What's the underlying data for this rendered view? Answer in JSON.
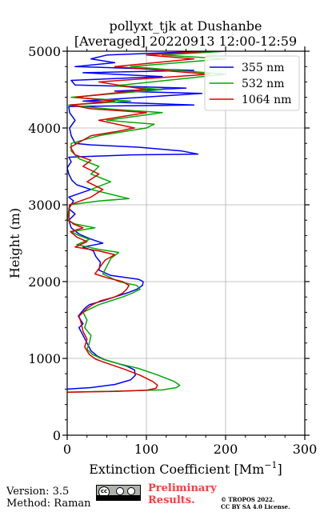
{
  "chart_data": {
    "type": "line",
    "title": "pollyxt_tjk at Dushanbe",
    "subtitle": "[Averaged] 20220913 12:00-12:59",
    "xlabel": "Extinction Coefficient [Mm",
    "xlabel_sup": "−1",
    "xlabel_end": "]",
    "ylabel": "Height (m)",
    "xlim": [
      0,
      300
    ],
    "ylim": [
      0,
      5000
    ],
    "xticks": [
      0,
      100,
      200,
      300
    ],
    "yticks": [
      0,
      1000,
      2000,
      3000,
      4000,
      5000
    ],
    "grid": true,
    "legend_position": "top-right",
    "series": [
      {
        "name": "355 nm",
        "color": "#0000ff",
        "points": [
          [
            0,
            600
          ],
          [
            30,
            620
          ],
          [
            60,
            660
          ],
          [
            80,
            720
          ],
          [
            86,
            780
          ],
          [
            85,
            850
          ],
          [
            75,
            900
          ],
          [
            62,
            940
          ],
          [
            48,
            980
          ],
          [
            38,
            1030
          ],
          [
            30,
            1100
          ],
          [
            25,
            1200
          ],
          [
            20,
            1300
          ],
          [
            15,
            1400
          ],
          [
            20,
            1450
          ],
          [
            14,
            1550
          ],
          [
            18,
            1600
          ],
          [
            22,
            1650
          ],
          [
            28,
            1700
          ],
          [
            45,
            1750
          ],
          [
            60,
            1800
          ],
          [
            75,
            1850
          ],
          [
            88,
            1900
          ],
          [
            95,
            1950
          ],
          [
            96,
            2000
          ],
          [
            90,
            2030
          ],
          [
            55,
            2080
          ],
          [
            40,
            2150
          ],
          [
            42,
            2250
          ],
          [
            36,
            2330
          ],
          [
            33,
            2400
          ],
          [
            20,
            2450
          ],
          [
            45,
            2500
          ],
          [
            28,
            2560
          ],
          [
            15,
            2620
          ],
          [
            5,
            2700
          ],
          [
            2,
            2800
          ],
          [
            10,
            2880
          ],
          [
            2,
            2950
          ],
          [
            8,
            3050
          ],
          [
            2,
            3100
          ],
          [
            30,
            3200
          ],
          [
            12,
            3260
          ],
          [
            6,
            3320
          ],
          [
            2,
            3400
          ],
          [
            0,
            3480
          ],
          [
            5,
            3560
          ],
          [
            2,
            3620
          ],
          [
            80,
            3650
          ],
          [
            165,
            3660
          ],
          [
            145,
            3700
          ],
          [
            90,
            3750
          ],
          [
            30,
            3780
          ],
          [
            10,
            3800
          ],
          [
            5,
            3900
          ],
          [
            3,
            4000
          ],
          [
            10,
            4100
          ],
          [
            3,
            4200
          ],
          [
            2,
            4280
          ],
          [
            160,
            4300
          ],
          [
            20,
            4350
          ],
          [
            170,
            4450
          ],
          [
            60,
            4480
          ],
          [
            150,
            4520
          ],
          [
            10,
            4560
          ],
          [
            5,
            4620
          ],
          [
            120,
            4670
          ],
          [
            20,
            4720
          ],
          [
            160,
            4750
          ],
          [
            10,
            4800
          ],
          [
            60,
            4850
          ],
          [
            30,
            4900
          ],
          [
            50,
            4950
          ],
          [
            150,
            4990
          ],
          [
            170,
            5000
          ]
        ]
      },
      {
        "name": "532 nm",
        "color": "#00aa00",
        "points": [
          [
            0,
            560
          ],
          [
            70,
            575
          ],
          [
            120,
            590
          ],
          [
            138,
            620
          ],
          [
            142,
            650
          ],
          [
            135,
            700
          ],
          [
            115,
            780
          ],
          [
            90,
            870
          ],
          [
            65,
            930
          ],
          [
            45,
            990
          ],
          [
            32,
            1050
          ],
          [
            25,
            1120
          ],
          [
            28,
            1200
          ],
          [
            30,
            1300
          ],
          [
            22,
            1400
          ],
          [
            25,
            1500
          ],
          [
            20,
            1600
          ],
          [
            30,
            1650
          ],
          [
            40,
            1700
          ],
          [
            55,
            1750
          ],
          [
            70,
            1800
          ],
          [
            82,
            1850
          ],
          [
            92,
            1900
          ],
          [
            88,
            1950
          ],
          [
            65,
            2000
          ],
          [
            45,
            2100
          ],
          [
            50,
            2200
          ],
          [
            55,
            2300
          ],
          [
            65,
            2380
          ],
          [
            40,
            2420
          ],
          [
            12,
            2480
          ],
          [
            28,
            2550
          ],
          [
            15,
            2600
          ],
          [
            5,
            2650
          ],
          [
            35,
            2700
          ],
          [
            10,
            2750
          ],
          [
            0,
            2800
          ],
          [
            3,
            3000
          ],
          [
            40,
            3050
          ],
          [
            78,
            3080
          ],
          [
            50,
            3150
          ],
          [
            30,
            3200
          ],
          [
            55,
            3300
          ],
          [
            30,
            3400
          ],
          [
            40,
            3500
          ],
          [
            15,
            3600
          ],
          [
            5,
            3700
          ],
          [
            5,
            3800
          ],
          [
            40,
            3900
          ],
          [
            70,
            3950
          ],
          [
            100,
            4000
          ],
          [
            110,
            4050
          ],
          [
            50,
            4100
          ],
          [
            120,
            4200
          ],
          [
            50,
            4250
          ],
          [
            2,
            4300
          ],
          [
            80,
            4350
          ],
          [
            5,
            4400
          ],
          [
            120,
            4500
          ],
          [
            60,
            4550
          ],
          [
            200,
            4700
          ],
          [
            80,
            4800
          ],
          [
            200,
            4900
          ],
          [
            120,
            4950
          ],
          [
            200,
            5000
          ]
        ]
      },
      {
        "name": "1064 nm",
        "color": "#dd0000",
        "points": [
          [
            0,
            560
          ],
          [
            60,
            570
          ],
          [
            100,
            585
          ],
          [
            112,
            610
          ],
          [
            114,
            650
          ],
          [
            108,
            700
          ],
          [
            92,
            780
          ],
          [
            72,
            860
          ],
          [
            52,
            930
          ],
          [
            36,
            990
          ],
          [
            28,
            1050
          ],
          [
            22,
            1150
          ],
          [
            25,
            1250
          ],
          [
            20,
            1350
          ],
          [
            18,
            1450
          ],
          [
            15,
            1550
          ],
          [
            20,
            1600
          ],
          [
            25,
            1650
          ],
          [
            32,
            1700
          ],
          [
            42,
            1750
          ],
          [
            60,
            1800
          ],
          [
            70,
            1850
          ],
          [
            75,
            1900
          ],
          [
            78,
            1950
          ],
          [
            70,
            2000
          ],
          [
            50,
            2050
          ],
          [
            35,
            2100
          ],
          [
            42,
            2200
          ],
          [
            48,
            2280
          ],
          [
            60,
            2350
          ],
          [
            40,
            2400
          ],
          [
            10,
            2450
          ],
          [
            25,
            2520
          ],
          [
            12,
            2580
          ],
          [
            4,
            2650
          ],
          [
            20,
            2700
          ],
          [
            8,
            2750
          ],
          [
            2,
            2800
          ],
          [
            3,
            3000
          ],
          [
            30,
            3100
          ],
          [
            45,
            3200
          ],
          [
            25,
            3300
          ],
          [
            40,
            3400
          ],
          [
            20,
            3500
          ],
          [
            30,
            3580
          ],
          [
            10,
            3650
          ],
          [
            4,
            3750
          ],
          [
            30,
            3900
          ],
          [
            60,
            3950
          ],
          [
            85,
            4000
          ],
          [
            40,
            4100
          ],
          [
            100,
            4200
          ],
          [
            30,
            4250
          ],
          [
            4,
            4300
          ],
          [
            60,
            4350
          ],
          [
            10,
            4400
          ],
          [
            100,
            4500
          ],
          [
            40,
            4600
          ],
          [
            180,
            4700
          ],
          [
            60,
            4800
          ],
          [
            160,
            4900
          ],
          [
            100,
            4950
          ],
          [
            180,
            5000
          ]
        ]
      }
    ]
  },
  "footer": {
    "version": "Version: 3.5",
    "method": "Method: Raman",
    "preliminary_line1": "Preliminary",
    "preliminary_line2": "Results.",
    "copyright_line1": "© TROPOS 2022.",
    "copyright_line2": "CC BY SA 4.0 License.",
    "license_badge_text": "cc"
  }
}
